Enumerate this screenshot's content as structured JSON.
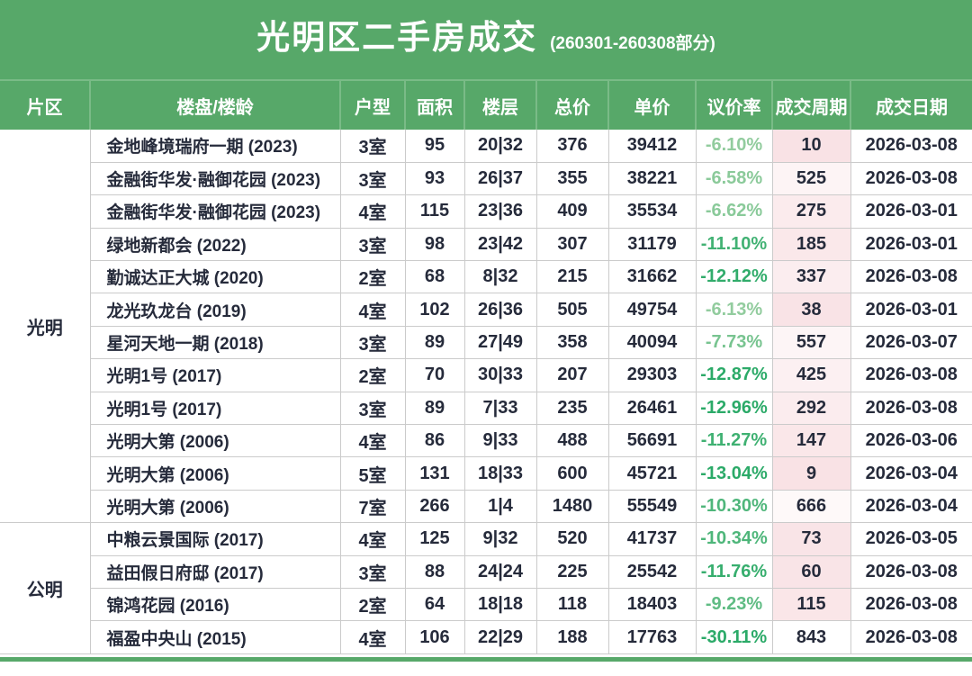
{
  "header": {
    "title": "光明区二手房成交",
    "subtitle": "(260301-260308部分)"
  },
  "colors": {
    "brand_green": "#57a869",
    "header_divider_green": "#7abb87",
    "grid_border": "#cbcbcb",
    "text_dark": "#262b3b",
    "period_pink_max": "#f9e2e5",
    "period_white": "#ffffff",
    "rate_green_light": "#94cd9f",
    "rate_green_dark": "#2baa68"
  },
  "chart_data": {
    "type": "table",
    "title": "光明区二手房成交",
    "subtitle": "(260301-260308部分)",
    "columns": [
      "片区",
      "楼盘/楼龄",
      "户型",
      "面积",
      "楼层",
      "总价",
      "单价",
      "议价率",
      "成交周期",
      "成交日期"
    ],
    "groups": [
      {
        "area": "光明",
        "rows": [
          {
            "name": "金地峰境瑞府一期 (2023)",
            "layout": "3室",
            "size": "95",
            "floor": "20|32",
            "total": "376",
            "unit": "39412",
            "rate": "-6.10%",
            "period": "10",
            "date": "2026-03-08"
          },
          {
            "name": "金融街华发·融御花园 (2023)",
            "layout": "3室",
            "size": "93",
            "floor": "26|37",
            "total": "355",
            "unit": "38221",
            "rate": "-6.58%",
            "period": "525",
            "date": "2026-03-08"
          },
          {
            "name": "金融街华发·融御花园 (2023)",
            "layout": "4室",
            "size": "115",
            "floor": "23|36",
            "total": "409",
            "unit": "35534",
            "rate": "-6.62%",
            "period": "275",
            "date": "2026-03-01"
          },
          {
            "name": "绿地新都会 (2022)",
            "layout": "3室",
            "size": "98",
            "floor": "23|42",
            "total": "307",
            "unit": "31179",
            "rate": "-11.10%",
            "period": "185",
            "date": "2026-03-01"
          },
          {
            "name": "勤诚达正大城 (2020)",
            "layout": "2室",
            "size": "68",
            "floor": "8|32",
            "total": "215",
            "unit": "31662",
            "rate": "-12.12%",
            "period": "337",
            "date": "2026-03-08"
          },
          {
            "name": "龙光玖龙台 (2019)",
            "layout": "4室",
            "size": "102",
            "floor": "26|36",
            "total": "505",
            "unit": "49754",
            "rate": "-6.13%",
            "period": "38",
            "date": "2026-03-01"
          },
          {
            "name": "星河天地一期 (2018)",
            "layout": "3室",
            "size": "89",
            "floor": "27|49",
            "total": "358",
            "unit": "40094",
            "rate": "-7.73%",
            "period": "557",
            "date": "2026-03-07"
          },
          {
            "name": "光明1号 (2017)",
            "layout": "2室",
            "size": "70",
            "floor": "30|33",
            "total": "207",
            "unit": "29303",
            "rate": "-12.87%",
            "period": "425",
            "date": "2026-03-08"
          },
          {
            "name": "光明1号 (2017)",
            "layout": "3室",
            "size": "89",
            "floor": "7|33",
            "total": "235",
            "unit": "26461",
            "rate": "-12.96%",
            "period": "292",
            "date": "2026-03-08"
          },
          {
            "name": "光明大第 (2006)",
            "layout": "4室",
            "size": "86",
            "floor": "9|33",
            "total": "488",
            "unit": "56691",
            "rate": "-11.27%",
            "period": "147",
            "date": "2026-03-06"
          },
          {
            "name": "光明大第 (2006)",
            "layout": "5室",
            "size": "131",
            "floor": "18|33",
            "total": "600",
            "unit": "45721",
            "rate": "-13.04%",
            "period": "9",
            "date": "2026-03-04"
          },
          {
            "name": "光明大第 (2006)",
            "layout": "7室",
            "size": "266",
            "floor": "1|4",
            "total": "1480",
            "unit": "55549",
            "rate": "-10.30%",
            "period": "666",
            "date": "2026-03-04"
          }
        ]
      },
      {
        "area": "公明",
        "rows": [
          {
            "name": "中粮云景国际 (2017)",
            "layout": "4室",
            "size": "125",
            "floor": "9|32",
            "total": "520",
            "unit": "41737",
            "rate": "-10.34%",
            "period": "73",
            "date": "2026-03-05"
          },
          {
            "name": "益田假日府邸 (2017)",
            "layout": "3室",
            "size": "88",
            "floor": "24|24",
            "total": "225",
            "unit": "25542",
            "rate": "-11.76%",
            "period": "60",
            "date": "2026-03-08"
          },
          {
            "name": "锦鸿花园 (2016)",
            "layout": "2室",
            "size": "64",
            "floor": "18|18",
            "total": "118",
            "unit": "18403",
            "rate": "-9.23%",
            "period": "115",
            "date": "2026-03-08"
          },
          {
            "name": "福盈中央山 (2015)",
            "layout": "4室",
            "size": "106",
            "floor": "22|29",
            "total": "188",
            "unit": "17763",
            "rate": "-30.11%",
            "period": "843",
            "date": "2026-03-08"
          }
        ]
      }
    ]
  }
}
